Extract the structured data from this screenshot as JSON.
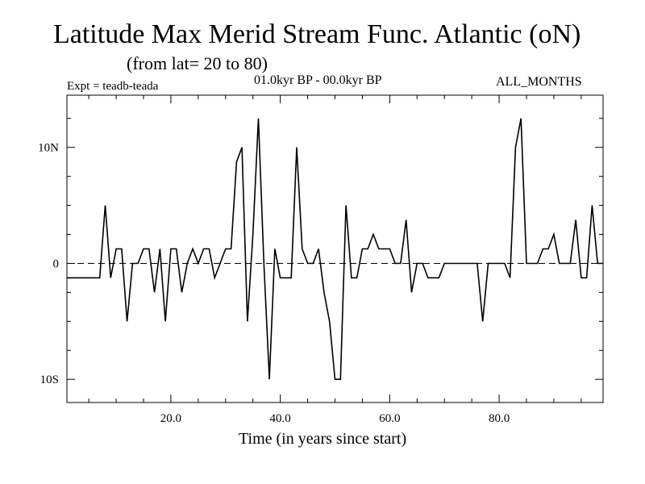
{
  "chart_data": {
    "type": "line",
    "title": "Latitude Max Merid Stream Func. Atlantic (oN)",
    "subtitle": "(from lat= 20 to 80)",
    "experiment_label": "Expt = teadb-teada",
    "period_label": "01.0kyr BP - 00.0kyr BP",
    "months_label": "ALL_MONTHS",
    "xlabel": "Time (in years since start)",
    "ylabel": "",
    "xlim": [
      1,
      99
    ],
    "ylim": [
      -12,
      14.5
    ],
    "xticks": [
      {
        "value": 20,
        "label": "20.0"
      },
      {
        "value": 40,
        "label": "40.0"
      },
      {
        "value": 60,
        "label": "60.0"
      },
      {
        "value": 80,
        "label": "80.0"
      }
    ],
    "yticks": [
      {
        "value": 10,
        "label": "10N"
      },
      {
        "value": 0,
        "label": "0"
      },
      {
        "value": -10,
        "label": "10S"
      }
    ],
    "zero_line": "dashed",
    "x": [
      1,
      2,
      3,
      4,
      5,
      6,
      7,
      8,
      9,
      10,
      11,
      12,
      13,
      14,
      15,
      16,
      17,
      18,
      19,
      20,
      21,
      22,
      23,
      24,
      25,
      26,
      27,
      28,
      29,
      30,
      31,
      32,
      33,
      34,
      35,
      36,
      37,
      38,
      39,
      40,
      41,
      42,
      43,
      44,
      45,
      46,
      47,
      48,
      49,
      50,
      51,
      52,
      53,
      54,
      55,
      56,
      57,
      58,
      59,
      60,
      61,
      62,
      63,
      64,
      65,
      66,
      67,
      68,
      69,
      70,
      71,
      72,
      73,
      74,
      75,
      76,
      77,
      78,
      79,
      80,
      81,
      82,
      83,
      84,
      85,
      86,
      87,
      88,
      89,
      90,
      91,
      92,
      93,
      94,
      95,
      96,
      97,
      98,
      99
    ],
    "values": [
      -1.25,
      -1.25,
      -1.25,
      -1.25,
      -1.25,
      -1.25,
      -1.25,
      5,
      -1.25,
      1.25,
      1.25,
      -5,
      0,
      0,
      1.25,
      1.25,
      -2.5,
      1.25,
      -5,
      1.25,
      1.25,
      -2.5,
      0,
      1.25,
      0,
      1.25,
      1.25,
      -1.25,
      0,
      1.25,
      1.25,
      8.75,
      10,
      -5,
      2.5,
      12.5,
      0,
      -10,
      1.25,
      -1.25,
      -1.25,
      -1.25,
      10,
      1.25,
      0,
      0,
      1.25,
      -2.5,
      -5,
      -10,
      -10,
      5,
      -1.25,
      -1.25,
      1.25,
      1.25,
      2.5,
      1.25,
      1.25,
      1.25,
      0,
      0,
      3.75,
      -2.5,
      0,
      0,
      -1.25,
      -1.25,
      -1.25,
      0,
      0,
      0,
      0,
      0,
      0,
      0,
      -5,
      0,
      0,
      0,
      0,
      -1.25,
      10,
      12.5,
      0,
      0,
      0,
      1.25,
      1.25,
      2.5,
      0,
      0,
      0,
      3.75,
      -1.25,
      -1.25,
      5,
      0,
      0
    ]
  }
}
